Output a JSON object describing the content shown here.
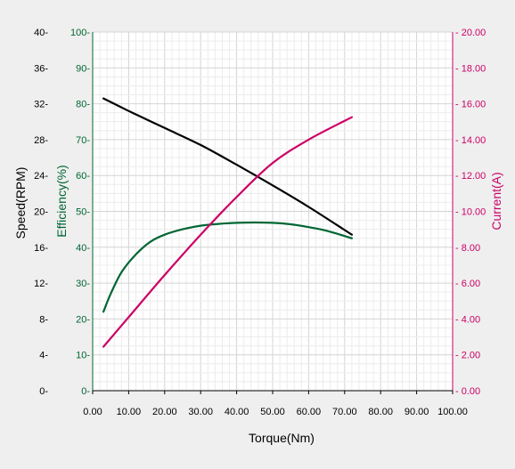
{
  "chart_data": {
    "type": "line",
    "xlabel": "Torque(Nm)",
    "x_ticks": [
      "0.00",
      "10.00",
      "20.00",
      "30.00",
      "40.00",
      "50.00",
      "60.00",
      "70.00",
      "80.00",
      "90.00",
      "100.00"
    ],
    "xlim": [
      0,
      100
    ],
    "axes": {
      "speed": {
        "label": "Speed(RPM)",
        "color": "#000000",
        "lim": [
          0,
          40
        ],
        "ticks": [
          "0",
          "4",
          "8",
          "12",
          "16",
          "20",
          "24",
          "28",
          "32",
          "36",
          "40"
        ]
      },
      "efficiency": {
        "label": "Efficiency(%)",
        "color": "#006633",
        "lim": [
          0,
          100
        ],
        "ticks": [
          "0",
          "10",
          "20",
          "30",
          "40",
          "50",
          "60",
          "70",
          "80",
          "90",
          "100"
        ]
      },
      "current": {
        "label": "Current(A)",
        "color": "#cc0066",
        "lim": [
          0,
          20
        ],
        "ticks": [
          "0.00",
          "2.00",
          "4.00",
          "6.00",
          "8.00",
          "10.00",
          "12.00",
          "14.00",
          "16.00",
          "18.00",
          "20.00"
        ]
      }
    },
    "series": [
      {
        "axis": "speed",
        "color": "#000000",
        "x": [
          3,
          10,
          20,
          30,
          40,
          50,
          60,
          72
        ],
        "y": [
          32.6,
          31.2,
          29.3,
          27.4,
          25.2,
          22.9,
          20.5,
          17.4
        ]
      },
      {
        "axis": "efficiency",
        "color": "#006633",
        "x": [
          3,
          5,
          8,
          12,
          16,
          20,
          25,
          30,
          35,
          40,
          45,
          50,
          55,
          60,
          65,
          72
        ],
        "y": [
          22,
          27,
          33,
          38,
          41.5,
          43.5,
          45,
          46,
          46.5,
          46.8,
          46.9,
          46.8,
          46.4,
          45.6,
          44.6,
          42.5
        ]
      },
      {
        "axis": "current",
        "color": "#cc0066",
        "x": [
          3,
          10,
          20,
          30,
          40,
          50,
          60,
          72
        ],
        "y": [
          2.45,
          4.1,
          6.45,
          8.7,
          10.8,
          12.7,
          14.0,
          15.25
        ]
      }
    ],
    "grid": true
  }
}
